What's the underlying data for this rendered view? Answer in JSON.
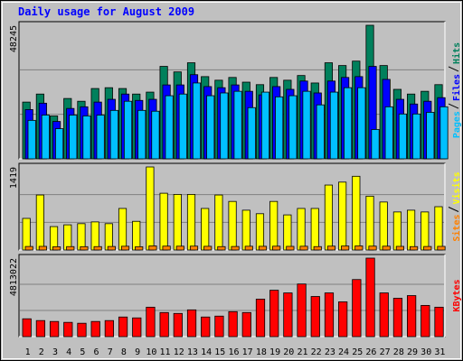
{
  "chart_data": [
    {
      "type": "bar",
      "title": "Daily usage for August 2009",
      "series": [
        {
          "name": "Pages",
          "color": "#00c0ff",
          "values": [
            13900,
            15800,
            10900,
            15800,
            15500,
            15800,
            17500,
            20800,
            17500,
            17200,
            22800,
            23400,
            27400,
            22800,
            23800,
            24400,
            18500,
            24100,
            22400,
            22800,
            24400,
            19500,
            24100,
            25700,
            25700,
            10600,
            18800,
            16200,
            16200,
            16800,
            18800
          ]
        },
        {
          "name": "Files",
          "color": "#0000ff",
          "values": [
            17800,
            20100,
            13500,
            18200,
            18800,
            20500,
            21500,
            23400,
            21100,
            21500,
            26700,
            26700,
            30400,
            26100,
            25700,
            26700,
            24400,
            23100,
            26100,
            25100,
            28100,
            23800,
            28100,
            29400,
            29700,
            33400,
            28700,
            21500,
            19800,
            20800,
            22100
          ]
        },
        {
          "name": "Hits",
          "color": "#00805c",
          "values": [
            20500,
            23400,
            15500,
            21800,
            20800,
            25400,
            25700,
            25400,
            23400,
            24100,
            33400,
            31400,
            34700,
            29700,
            28400,
            29400,
            27700,
            26800,
            29400,
            28400,
            30100,
            27400,
            34700,
            33700,
            35300,
            48245,
            33700,
            25100,
            23400,
            24400,
            26800
          ]
        }
      ],
      "ylim": [
        0,
        48245
      ],
      "yticks": [
        48245
      ]
    },
    {
      "type": "bar",
      "series": [
        {
          "name": "Sites",
          "color": "#ff8000",
          "values": [
            60,
            62,
            55,
            58,
            57,
            58,
            60,
            64,
            56,
            70,
            66,
            65,
            66,
            63,
            58,
            60,
            64,
            63,
            65,
            62,
            64,
            58,
            66,
            68,
            70,
            66,
            65,
            62,
            58,
            60,
            62
          ]
        },
        {
          "name": "Visits",
          "color": "#ffff00",
          "values": [
            540,
            940,
            400,
            430,
            450,
            480,
            450,
            710,
            490,
            1419,
            970,
            950,
            950,
            710,
            940,
            830,
            680,
            620,
            830,
            600,
            710,
            710,
            1110,
            1160,
            1260,
            920,
            820,
            650,
            680,
            650,
            740
          ]
        }
      ],
      "ylim": [
        0,
        1419
      ],
      "yticks": [
        1419
      ]
    },
    {
      "type": "bar",
      "categories": [
        "1",
        "2",
        "3",
        "4",
        "5",
        "6",
        "7",
        "8",
        "9",
        "10",
        "11",
        "12",
        "13",
        "14",
        "15",
        "16",
        "17",
        "18",
        "19",
        "20",
        "21",
        "22",
        "23",
        "24",
        "25",
        "26",
        "27",
        "28",
        "29",
        "30",
        "31"
      ],
      "category_colors": [
        "#00805c",
        "#00805c",
        "#000080",
        "#000080",
        "#000080",
        "#000080",
        "#000080",
        "#00805c",
        "#00805c",
        "#000080",
        "#000080",
        "#000080",
        "#000080",
        "#000080",
        "#00805c",
        "#00805c",
        "#000080",
        "#000080",
        "#000080",
        "#000080",
        "#000080",
        "#00805c",
        "#00805c",
        "#000080",
        "#000080",
        "#000080",
        "#000080",
        "#000080",
        "#00805c",
        "#00805c",
        "#000080"
      ],
      "series": [
        {
          "name": "KBytes",
          "color": "#ff0000",
          "values": [
            1094000,
            985000,
            930000,
            875000,
            820000,
            930000,
            985000,
            1203000,
            1149000,
            1805000,
            1477000,
            1422000,
            1641000,
            1203000,
            1258000,
            1532000,
            1477000,
            2297000,
            2844000,
            2680000,
            3227000,
            2461000,
            2680000,
            2133000,
            3500000,
            4813022,
            2680000,
            2352000,
            2516000,
            1914000,
            1805000
          ]
        }
      ],
      "ylim": [
        0,
        4813022
      ],
      "yticks": [
        4813022
      ]
    }
  ]
}
